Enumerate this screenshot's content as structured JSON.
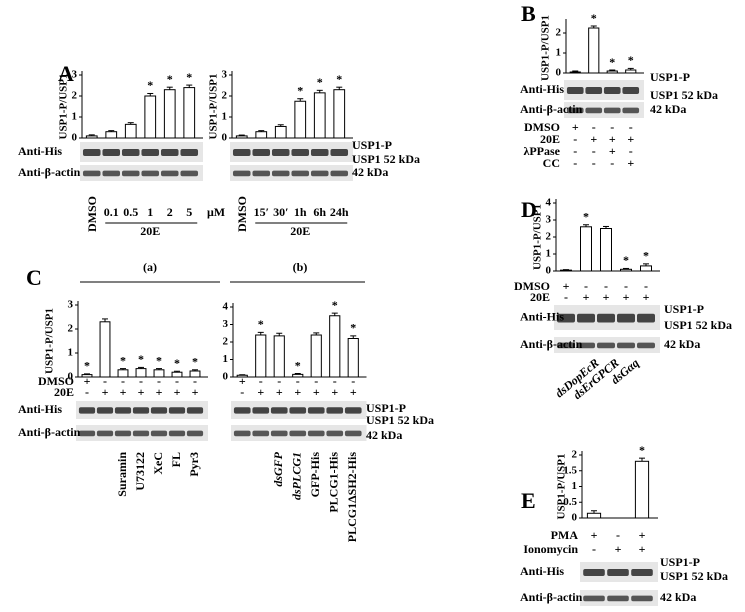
{
  "chart_data": [
    {
      "type": "bar",
      "panel": "A",
      "ylabel": "USP1-P/USP1",
      "ylim": [
        0,
        3
      ],
      "yticks": [
        0,
        1,
        2,
        3
      ],
      "color": "#ffffff",
      "categories": [
        "DMSO",
        "0.1",
        "0.5",
        "1",
        "2",
        "5"
      ],
      "unit_label": "μM",
      "group_label": "20E",
      "values": [
        0.1,
        0.3,
        0.65,
        2.0,
        2.3,
        2.4
      ],
      "errors": [
        0.05,
        0.05,
        0.08,
        0.12,
        0.12,
        0.12
      ],
      "annotations": [
        null,
        null,
        null,
        "*",
        "*",
        "*"
      ],
      "blot_labels": [
        "Anti-His",
        "Anti-β-actin"
      ]
    },
    {
      "type": "bar",
      "ylabel": "USP1-P/USP1",
      "ylim": [
        0,
        3
      ],
      "yticks": [
        0,
        1,
        2,
        3
      ],
      "color": "#ffffff",
      "categories": [
        "DMSO",
        "15′",
        "30′",
        "1h",
        "6h",
        "24h"
      ],
      "group_label": "20E",
      "values": [
        0.1,
        0.3,
        0.55,
        1.75,
        2.15,
        2.3
      ],
      "errors": [
        0.04,
        0.05,
        0.08,
        0.12,
        0.12,
        0.12
      ],
      "annotations": [
        null,
        null,
        null,
        "*",
        "*",
        "*"
      ],
      "band_labels": [
        "USP1-P",
        "USP1 52 kDa",
        "42 kDa"
      ]
    },
    {
      "type": "bar",
      "panel": "B",
      "ylabel": "USP1-P/USP1",
      "ylim": [
        0,
        2.5
      ],
      "yticks": [
        0,
        1,
        2
      ],
      "color": "#ffffff",
      "values": [
        0.05,
        2.25,
        0.1,
        0.15
      ],
      "errors": [
        0.05,
        0.1,
        0.05,
        0.08
      ],
      "annotations": [
        null,
        "*",
        "*",
        "*"
      ],
      "blot_labels": [
        "Anti-His",
        "Anti-β-actin"
      ],
      "band_labels": [
        "USP1-P",
        "USP1 52 kDa",
        "42 kDa"
      ],
      "rows": [
        {
          "label": "DMSO",
          "signs": [
            "+",
            "-",
            "-",
            "-"
          ]
        },
        {
          "label": "20E",
          "signs": [
            "-",
            "+",
            "+",
            "+"
          ]
        },
        {
          "label": "λPPase",
          "signs": [
            "-",
            "-",
            "+",
            "-"
          ]
        },
        {
          "label": "CC",
          "signs": [
            "-",
            "-",
            "-",
            "+"
          ]
        }
      ]
    },
    {
      "type": "bar",
      "panel": "C",
      "header": "(a)",
      "ylabel": "USP1-P/USP1",
      "ylim": [
        0,
        3
      ],
      "yticks": [
        0,
        1,
        2,
        3
      ],
      "color": "#ffffff",
      "categories": [
        null,
        null,
        "Suramin",
        "U73122",
        "XeC",
        "FL",
        "Pyr3"
      ],
      "values": [
        0.1,
        2.3,
        0.3,
        0.35,
        0.3,
        0.2,
        0.25
      ],
      "errors": [
        0.03,
        0.12,
        0.05,
        0.05,
        0.05,
        0.04,
        0.05
      ],
      "annotations": [
        "*",
        null,
        "*",
        "*",
        "*",
        "*",
        "*"
      ],
      "blot_labels": [
        "Anti-His",
        "Anti-β-actin"
      ],
      "rows": [
        {
          "label": "DMSO",
          "signs": [
            "+",
            "-",
            "-",
            "-",
            "-",
            "-",
            "-"
          ]
        },
        {
          "label": "20E",
          "signs": [
            "-",
            "+",
            "+",
            "+",
            "+",
            "+",
            "+"
          ]
        }
      ]
    },
    {
      "type": "bar",
      "header": "(b)",
      "ylim": [
        0,
        4
      ],
      "yticks": [
        0,
        1,
        2,
        3,
        4
      ],
      "color": "#ffffff",
      "categories": [
        null,
        null,
        "dsGFP",
        "dsPLCG1",
        "GFP-His",
        "PLCG1-His",
        "PLCG1ΔSH2-His"
      ],
      "values": [
        0.1,
        2.4,
        2.35,
        0.15,
        2.4,
        3.5,
        2.2
      ],
      "errors": [
        0.03,
        0.15,
        0.15,
        0.05,
        0.12,
        0.15,
        0.15
      ],
      "annotations": [
        null,
        "*",
        null,
        "*",
        null,
        "*",
        "*"
      ],
      "band_labels": [
        "USP1-P",
        "USP1 52 kDa",
        "42 kDa"
      ],
      "rows": [
        {
          "signs": [
            "+",
            "-",
            "-",
            "-",
            "-",
            "-",
            "-"
          ]
        },
        {
          "signs": [
            "-",
            "+",
            "+",
            "+",
            "+",
            "+",
            "+"
          ]
        }
      ]
    },
    {
      "type": "bar",
      "panel": "D",
      "ylabel": "USP1-P/USP1",
      "ylim": [
        0,
        4
      ],
      "yticks": [
        0,
        1,
        2,
        3,
        4
      ],
      "color": "#ffffff",
      "categories": [
        null,
        null,
        "dsDopEcR",
        "dsErGPCR",
        "dsGαq"
      ],
      "values": [
        0.05,
        2.6,
        2.5,
        0.1,
        0.3
      ],
      "errors": [
        0.03,
        0.12,
        0.12,
        0.05,
        0.12
      ],
      "annotations": [
        null,
        "*",
        null,
        "*",
        "*"
      ],
      "blot_labels": [
        "Anti-His",
        "Anti-β-actin"
      ],
      "band_labels": [
        "USP1-P",
        "USP1 52 kDa",
        "42 kDa"
      ],
      "rows": [
        {
          "label": "DMSO",
          "signs": [
            "+",
            "-",
            "-",
            "-",
            "-"
          ]
        },
        {
          "label": "20E",
          "signs": [
            "-",
            "+",
            "+",
            "+",
            "+"
          ]
        }
      ]
    },
    {
      "type": "bar",
      "panel": "E",
      "ylabel": "USP1-P/USP1",
      "ylim": [
        0,
        2
      ],
      "yticks": [
        0,
        0.5,
        1,
        1.5,
        2
      ],
      "color": "#ffffff",
      "values": [
        0.15,
        null,
        1.8
      ],
      "errors": [
        0.08,
        null,
        0.1
      ],
      "annotations": [
        null,
        null,
        "*"
      ],
      "blot_labels": [
        "Anti-His",
        "Anti-β-actin"
      ],
      "band_labels": [
        "USP1-P",
        "USP1 52 kDa",
        "42 kDa"
      ],
      "rows": [
        {
          "label": "PMA",
          "signs": [
            "+",
            "-",
            "+"
          ]
        },
        {
          "label": "Ionomycin",
          "signs": [
            "-",
            "+",
            "+"
          ]
        }
      ]
    }
  ]
}
